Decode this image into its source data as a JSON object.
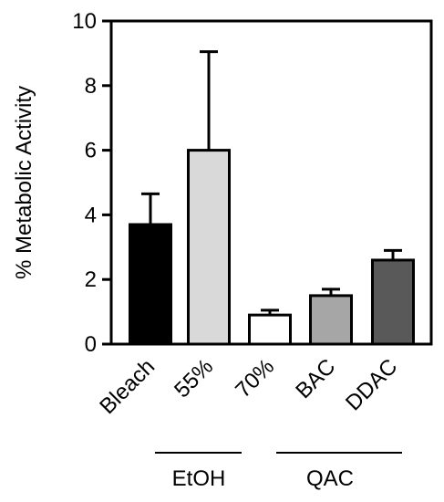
{
  "chart_data": {
    "type": "bar",
    "title": "",
    "xlabel": "",
    "ylabel": "% Metabolic Activity",
    "ylim": [
      0,
      10
    ],
    "yticks": [
      0,
      2,
      4,
      6,
      8,
      10
    ],
    "categories": [
      "Bleach",
      "55%",
      "70%",
      "BAC",
      "DDAC"
    ],
    "values": [
      3.7,
      6.0,
      0.9,
      1.5,
      2.6
    ],
    "errors": [
      0.95,
      3.05,
      0.15,
      0.2,
      0.3
    ],
    "colors": [
      "#000000",
      "#d9d9d9",
      "#ffffff",
      "#a6a6a6",
      "#595959"
    ],
    "groups": [
      {
        "label": "EtOH",
        "categories": [
          "55%",
          "70%"
        ]
      },
      {
        "label": "QAC",
        "categories": [
          "BAC",
          "DDAC"
        ]
      }
    ],
    "grid": false,
    "legend": "none"
  }
}
